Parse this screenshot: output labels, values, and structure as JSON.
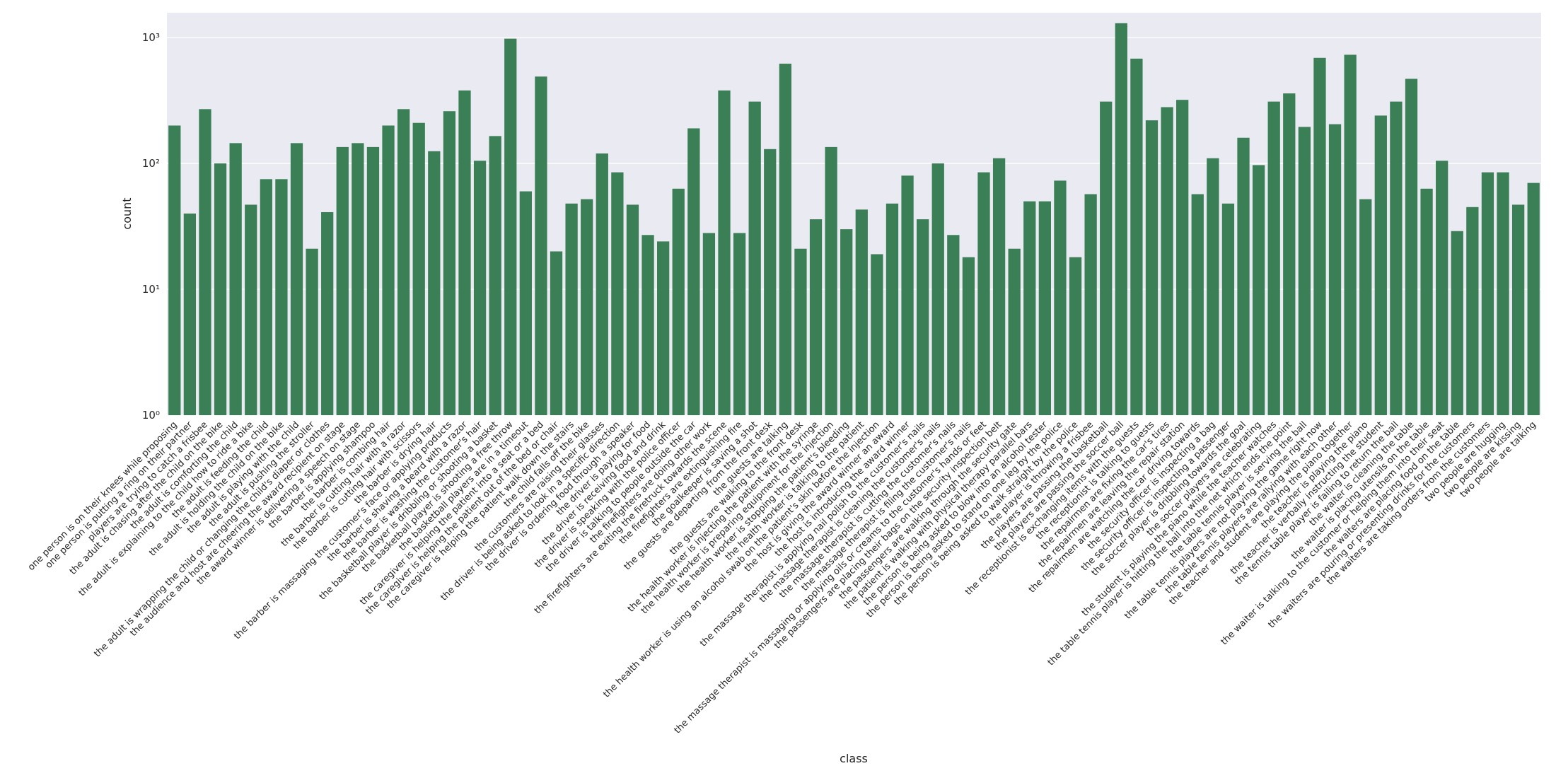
{
  "chart_data": {
    "type": "bar",
    "log_scale": true,
    "grid": true,
    "color": "#3b7f56",
    "xlabel": "class",
    "ylabel": "count",
    "ylim": [
      1,
      1575
    ],
    "yticks": [
      {
        "value": 1,
        "label": "10⁰"
      },
      {
        "value": 10,
        "label": "10¹"
      },
      {
        "value": 100,
        "label": "10²"
      },
      {
        "value": 1000,
        "label": "10³"
      }
    ],
    "categories": [
      "one person is on their knees while proposing",
      "one person is putting a ring on their partner",
      "players are trying to catch a frisbee",
      "the adult is chasing after the child on the bike",
      "the adult is comforting the child",
      "the adult is explaining to the child how to ride a bike",
      "the adult is feeding the child",
      "the adult is holding the child on the bike",
      "the adult is playing with the child",
      "the adult is pushing the stroller",
      "the adult is wrapping the child or changing the child's diaper or clothes",
      "the audience and host are cheering the award recipient on stage",
      "the award winner is delivering a speech on stage",
      "the barber is applying shampoo",
      "the barber is combing hair",
      "the barber is cutting hair with a razor",
      "the barber is cutting hair with scissors",
      "the barber is drying hair",
      "the barber is massaging the customer's face or applying products",
      "the barber is shaving a beard with a razor",
      "the barber is washing the customer's hair",
      "the basketball player is dribbling or shooting a basket",
      "the basketball player is shooting a free throw",
      "the basketball players are in a timeout",
      "the caregiver is helping the patient into a seat or a bed",
      "the caregiver is helping the patient out of the bed or chair",
      "the caregiver is helping the patient walk down the stairs",
      "the child falls off the bike",
      "the customers are raising their glasses",
      "the driver is being asked to look in a specific direction",
      "the driver is ordering food through a speaker",
      "the driver is paying for food",
      "the driver is receiving food and drink",
      "the driver is speaking with the police officer",
      "the driver is talking to people outside the car",
      "the firefighters are doing other work",
      "the firefighters are exiting the firetruck towards the scene",
      "the firefighters are extinguishing fire",
      "the goalkeeper is saving a shot",
      "the guests are departing from the front desk",
      "the guests are talking",
      "the guests are walking to the front desk",
      "the health worker is injecting the patient with the syringe",
      "the health worker is preparing equipment for the injection",
      "the health worker is stopping the patient's bleeding",
      "the health worker is talking to the patient",
      "the health worker is using an alcohol swab on the patient's skin before the injection",
      "the host is giving the award winner an award",
      "the host is introducing the award winner",
      "the massage therapist is applying nail polish to the customer's nails",
      "the massage therapist is cleaning the customer's nails",
      "the massage therapist is cutting the customer's nails",
      "the massage therapist is filing the customer's nails",
      "the massage therapist is massaging or applying oils or creams to the customer's hands or feet",
      "the passengers are placing their bags on the security inspection belt",
      "the passengers are walking through the security gate",
      "the patient is walking with physical therapy parallel bars",
      "the person is being asked to blow into an alcohol tester",
      "the person is being asked to stand on one leg by the police",
      "the person is being asked to walk straight by the police",
      "the player is throwing a frisbee",
      "the players are passing the basketball",
      "the players are passing the soccer ball",
      "the receptionist is exchanging items with the guests",
      "the receptionist is talking to guests",
      "the repairmen are fixing the car's tires",
      "the repairmen are leaving the repair station",
      "the repairmen are watching the car driving towards",
      "the security officer is inspecting a bag",
      "the security officer is inspecting a passenger",
      "the soccer player is dribbling towards the goal",
      "the soccer players are celebrating",
      "the student is playing the piano while the teacher watches",
      "the table tennis player is hitting the ball into the net which ends the point",
      "the table tennis player is serving the ball",
      "the table tennis players are not playing the game right now",
      "the table tennis players are rallying with each other",
      "the teacher and student are playing the piano together",
      "the teacher is playing the piano",
      "the teacher is verbally instructing the student",
      "the tennis table player is failing to return the ball",
      "the waiter is cleaning the table",
      "the waiter is placing utensils on the table",
      "the waiter is talking to the customer or helping them into their seat",
      "the waiters are placing food on the table",
      "the waiters are pouring or presenting drinks for the customers",
      "the waiters are taking orders from the customers",
      "two people are hugging",
      "two people are kissing",
      "two people are talking"
    ],
    "values": [
      200,
      40,
      270,
      100,
      145,
      47,
      75,
      75,
      145,
      21,
      41,
      135,
      145,
      135,
      200,
      270,
      210,
      125,
      260,
      380,
      105,
      165,
      980,
      60,
      490,
      20,
      48,
      52,
      120,
      85,
      47,
      27,
      24,
      63,
      190,
      28,
      380,
      28,
      310,
      130,
      620,
      21,
      36,
      135,
      30,
      43,
      19,
      48,
      80,
      36,
      100,
      27,
      18,
      85,
      110,
      21,
      50,
      50,
      73,
      18,
      57,
      310,
      1300,
      680,
      220,
      280,
      320,
      57,
      110,
      48,
      160,
      97,
      310,
      360,
      195,
      690,
      205,
      730,
      52,
      240,
      310,
      470,
      63,
      105,
      29,
      45,
      85,
      85,
      47,
      70
    ]
  }
}
